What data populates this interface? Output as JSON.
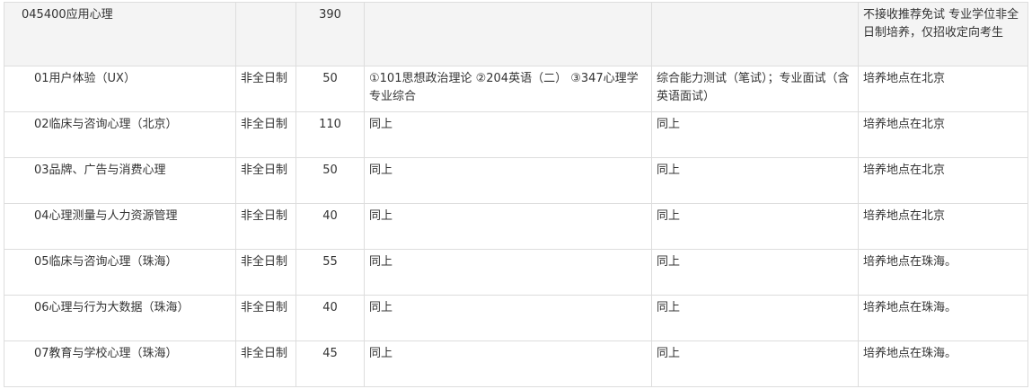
{
  "major": {
    "name": "045400应用心理",
    "mode": "",
    "quota": "390",
    "exam_subjects": "",
    "retest": "",
    "notes": "不接收推荐免试 专业学位非全日制培养，仅招收定向考生"
  },
  "rows": [
    {
      "name": "01用户体验（UX）",
      "mode": "非全日制",
      "quota": "50",
      "exam_subjects": "①101思想政治理论 ②204英语（二） ③347心理学专业综合",
      "retest": "综合能力测试（笔试）；专业面试（含英语面试）",
      "notes": "培养地点在北京"
    },
    {
      "name": "02临床与咨询心理（北京）",
      "mode": "非全日制",
      "quota": "110",
      "exam_subjects": "同上",
      "retest": "同上",
      "notes": "培养地点在北京"
    },
    {
      "name": "03品牌、广告与消费心理",
      "mode": "非全日制",
      "quota": "50",
      "exam_subjects": "同上",
      "retest": "同上",
      "notes": "培养地点在北京"
    },
    {
      "name": "04心理测量与人力资源管理",
      "mode": "非全日制",
      "quota": "40",
      "exam_subjects": "同上",
      "retest": "同上",
      "notes": "培养地点在北京"
    },
    {
      "name": "05临床与咨询心理（珠海）",
      "mode": "非全日制",
      "quota": "55",
      "exam_subjects": "同上",
      "retest": "同上",
      "notes": "培养地点在珠海。"
    },
    {
      "name": "06心理与行为大数据（珠海）",
      "mode": "非全日制",
      "quota": "40",
      "exam_subjects": "同上",
      "retest": "同上",
      "notes": "培养地点在珠海。"
    },
    {
      "name": "07教育与学校心理（珠海）",
      "mode": "非全日制",
      "quota": "45",
      "exam_subjects": "同上",
      "retest": "同上",
      "notes": "培养地点在珠海。"
    }
  ]
}
